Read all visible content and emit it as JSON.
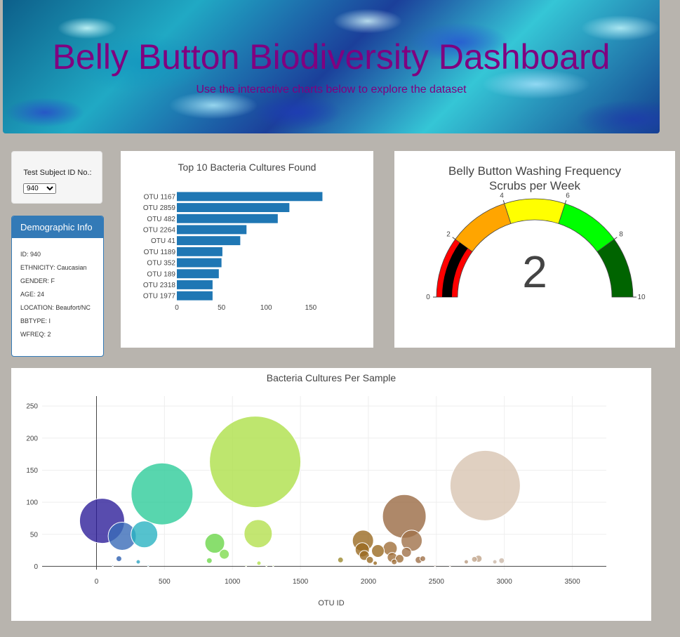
{
  "header": {
    "title": "Belly Button Biodiversity Dashboard",
    "subtitle": "Use the interactive charts below to explore the dataset"
  },
  "selector": {
    "label": "Test Subject ID No.:",
    "selected": "940"
  },
  "demographics": {
    "title": "Demographic Info",
    "rows": [
      "ID: 940",
      "ETHNICITY: Caucasian",
      "GENDER: F",
      "AGE: 24",
      "LOCATION: Beaufort/NC",
      "BBTYPE: I",
      "WFREQ: 2"
    ]
  },
  "chart_data": [
    {
      "type": "bar",
      "orientation": "horizontal",
      "title": "Top 10 Bacteria Cultures Found",
      "categories": [
        "OTU 1167",
        "OTU 2859",
        "OTU 482",
        "OTU 2264",
        "OTU 41",
        "OTU 1189",
        "OTU 352",
        "OTU 189",
        "OTU 2318",
        "OTU 1977"
      ],
      "values": [
        163,
        126,
        113,
        78,
        71,
        51,
        50,
        47,
        40,
        40
      ],
      "xlim": [
        0,
        165
      ],
      "xticks": [
        0,
        50,
        100,
        150
      ],
      "color": "#1f77b4"
    },
    {
      "type": "gauge",
      "title": "Belly Button Washing Frequency",
      "subtitle": "Scrubs per Week",
      "value": 2,
      "range": [
        0,
        10
      ],
      "ticks": [
        0,
        2,
        4,
        6,
        8,
        10
      ],
      "steps": [
        {
          "range": [
            0,
            2
          ],
          "color": "#ff0000"
        },
        {
          "range": [
            2,
            4
          ],
          "color": "#ffa500"
        },
        {
          "range": [
            4,
            6
          ],
          "color": "#ffff00"
        },
        {
          "range": [
            6,
            8
          ],
          "color": "#00ff00"
        },
        {
          "range": [
            8,
            10
          ],
          "color": "#006400"
        }
      ],
      "bar_color": "#000000"
    },
    {
      "type": "scatter",
      "title": "Bacteria Cultures Per Sample",
      "xlabel": "OTU ID",
      "ylabel": "",
      "xlim": [
        -400,
        3750
      ],
      "ylim": [
        -5,
        260
      ],
      "xticks": [
        0,
        500,
        1000,
        1500,
        2000,
        2500,
        3000,
        3500
      ],
      "yticks": [
        0,
        50,
        100,
        150,
        200,
        250
      ],
      "points": [
        {
          "x": 41,
          "y": 71,
          "color": "#2e1f9a"
        },
        {
          "x": 189,
          "y": 47,
          "color": "#3a6bb8"
        },
        {
          "x": 352,
          "y": 50,
          "color": "#2bb3c2"
        },
        {
          "x": 482,
          "y": 113,
          "color": "#2ecc9a"
        },
        {
          "x": 1167,
          "y": 163,
          "color": "#aee04a"
        },
        {
          "x": 1189,
          "y": 51,
          "color": "#b4e04f"
        },
        {
          "x": 870,
          "y": 36,
          "color": "#6bd64a"
        },
        {
          "x": 940,
          "y": 19,
          "color": "#7fdb4f"
        },
        {
          "x": 165,
          "y": 12,
          "color": "#2d5fb0"
        },
        {
          "x": 307,
          "y": 7,
          "color": "#2ea4c0"
        },
        {
          "x": 830,
          "y": 9,
          "color": "#6fd84c"
        },
        {
          "x": 1195,
          "y": 5,
          "color": "#b0e04c"
        },
        {
          "x": 1795,
          "y": 10,
          "color": "#9c8a2e"
        },
        {
          "x": 1960,
          "y": 40,
          "color": "#9a6a22"
        },
        {
          "x": 1955,
          "y": 26,
          "color": "#9a6a22"
        },
        {
          "x": 1970,
          "y": 17,
          "color": "#9a6a22"
        },
        {
          "x": 2011,
          "y": 10,
          "color": "#9a6a22"
        },
        {
          "x": 2050,
          "y": 5,
          "color": "#9a6a22"
        },
        {
          "x": 2070,
          "y": 24,
          "color": "#9a6a22"
        },
        {
          "x": 2160,
          "y": 28,
          "color": "#a06f3a"
        },
        {
          "x": 2175,
          "y": 14,
          "color": "#a06f3a"
        },
        {
          "x": 2190,
          "y": 7,
          "color": "#a06f3a"
        },
        {
          "x": 2230,
          "y": 12,
          "color": "#a06f3a"
        },
        {
          "x": 2264,
          "y": 78,
          "color": "#9a6a44"
        },
        {
          "x": 2318,
          "y": 40,
          "color": "#a0724a"
        },
        {
          "x": 2280,
          "y": 22,
          "color": "#a0724a"
        },
        {
          "x": 2370,
          "y": 10,
          "color": "#a0724a"
        },
        {
          "x": 2400,
          "y": 12,
          "color": "#a0724a"
        },
        {
          "x": 2720,
          "y": 7,
          "color": "#b89a80"
        },
        {
          "x": 2780,
          "y": 11,
          "color": "#c0a48a"
        },
        {
          "x": 2810,
          "y": 12,
          "color": "#c0a48a"
        },
        {
          "x": 2859,
          "y": 126,
          "color": "#d8c4b2"
        },
        {
          "x": 2930,
          "y": 7,
          "color": "#cbb8a8"
        },
        {
          "x": 2980,
          "y": 9,
          "color": "#cbb8a8"
        },
        {
          "x": 120,
          "y": 1,
          "color": "#2d5fb0"
        },
        {
          "x": 380,
          "y": 1,
          "color": "#2ea4c0"
        },
        {
          "x": 1100,
          "y": 1,
          "color": "#aee04a"
        },
        {
          "x": 1250,
          "y": 1,
          "color": "#b4e04f"
        },
        {
          "x": 1300,
          "y": 1,
          "color": "#b4e04f"
        },
        {
          "x": 2490,
          "y": 1,
          "color": "#a0724a"
        },
        {
          "x": 2600,
          "y": 1,
          "color": "#b89a80"
        }
      ],
      "sizes": [
        32,
        20,
        19,
        44,
        65,
        20,
        14,
        7,
        4,
        3,
        4,
        3,
        4,
        15,
        10,
        7,
        5,
        3,
        9,
        10,
        7,
        4,
        6,
        31,
        15,
        7,
        5,
        4,
        3,
        4,
        5,
        50,
        3,
        4,
        1,
        1,
        1,
        1,
        1,
        1,
        1
      ]
    }
  ]
}
